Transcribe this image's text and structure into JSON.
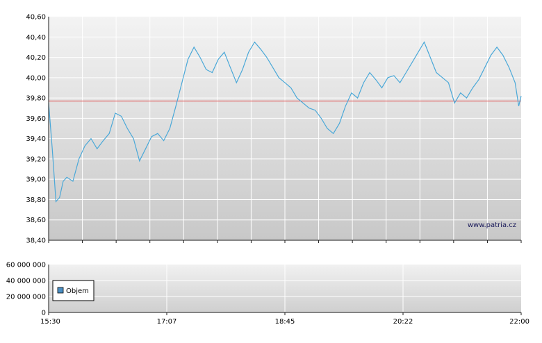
{
  "chart_data": [
    {
      "type": "line",
      "title": "",
      "xlabel": "",
      "ylabel": "",
      "ylim": [
        38.4,
        40.6
      ],
      "y_ticks": [
        "40,60",
        "40,40",
        "40,20",
        "40,00",
        "39,80",
        "39,60",
        "39,40",
        "39,20",
        "39,00",
        "38,80",
        "38,60",
        "38,40"
      ],
      "x_range_minutes": [
        "15:30",
        "22:00"
      ],
      "reference_line": {
        "value": 39.77,
        "color": "#e03a3a"
      },
      "line_color": "#4aa8d8",
      "watermark": "www.patria.cz",
      "grid": true,
      "series": [
        {
          "x": [
            "15:30",
            "15:33",
            "15:36",
            "15:39",
            "15:42",
            "15:45",
            "15:50",
            "15:55",
            "16:00",
            "16:05",
            "16:10",
            "16:15",
            "16:20",
            "16:25",
            "16:30",
            "16:35",
            "16:40",
            "16:45",
            "16:50",
            "16:55",
            "17:00",
            "17:05",
            "17:10",
            "17:15",
            "17:20",
            "17:25",
            "17:30",
            "17:35",
            "17:40",
            "17:45",
            "17:50",
            "17:55",
            "18:00",
            "18:05",
            "18:10",
            "18:15",
            "18:20",
            "18:25",
            "18:30",
            "18:35",
            "18:40",
            "18:45",
            "18:50",
            "18:55",
            "19:00",
            "19:05",
            "19:10",
            "19:15",
            "19:20",
            "19:25",
            "19:30",
            "19:35",
            "19:40",
            "19:45",
            "19:50",
            "19:55",
            "20:00",
            "20:05",
            "20:10",
            "20:15",
            "20:20",
            "20:25",
            "20:30",
            "20:35",
            "20:40",
            "20:45",
            "20:50",
            "20:55",
            "21:00",
            "21:05",
            "21:10",
            "21:15",
            "21:20",
            "21:25",
            "21:30",
            "21:35",
            "21:40",
            "21:45",
            "21:50",
            "21:55",
            "21:58",
            "22:00"
          ],
          "values": [
            39.75,
            39.3,
            38.78,
            38.82,
            38.98,
            39.02,
            38.98,
            39.2,
            39.33,
            39.4,
            39.3,
            39.38,
            39.45,
            39.65,
            39.62,
            39.5,
            39.4,
            39.18,
            39.3,
            39.42,
            39.45,
            39.38,
            39.5,
            39.72,
            39.95,
            40.18,
            40.3,
            40.2,
            40.08,
            40.05,
            40.18,
            40.25,
            40.1,
            39.95,
            40.08,
            40.25,
            40.35,
            40.28,
            40.2,
            40.1,
            40.0,
            39.95,
            39.9,
            39.8,
            39.75,
            39.7,
            39.68,
            39.6,
            39.5,
            39.45,
            39.55,
            39.72,
            39.85,
            39.8,
            39.95,
            40.05,
            39.98,
            39.9,
            40.0,
            40.02,
            39.95,
            40.05,
            40.15,
            40.25,
            40.35,
            40.2,
            40.05,
            40.0,
            39.95,
            39.75,
            39.85,
            39.8,
            39.9,
            39.98,
            40.1,
            40.22,
            40.3,
            40.22,
            40.1,
            39.95,
            39.72,
            39.82
          ]
        }
      ]
    },
    {
      "type": "bar",
      "title": "",
      "xlabel": "",
      "ylabel": "",
      "ylim": [
        0,
        60000000
      ],
      "y_ticks": [
        "60 000 000",
        "40 000 000",
        "20 000 000",
        "0"
      ],
      "x_tick_labels": [
        "15:30",
        "17:07",
        "18:45",
        "20:22",
        "22:00"
      ],
      "legend": {
        "label": "Objem",
        "position": "bottom-left",
        "color": "#4a8fc4"
      },
      "grid": true,
      "series": [
        {
          "name": "Objem",
          "values": []
        }
      ]
    }
  ]
}
